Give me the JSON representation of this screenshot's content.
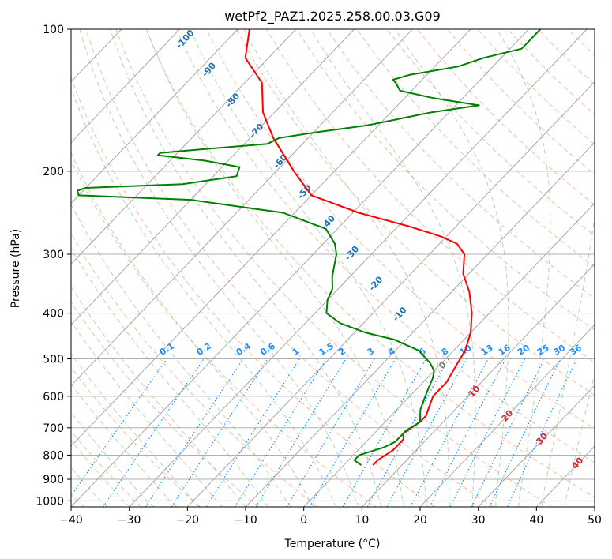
{
  "chart_data": {
    "type": "line",
    "title": "wetPf2_PAZ1.2025.258.00.03.G09",
    "xlabel": "Temperature (°C)",
    "ylabel": "Pressure (hPa)",
    "xlim": [
      -40,
      50
    ],
    "ylim": [
      1030,
      100
    ],
    "y_scale": "log",
    "skew": true,
    "grid": true,
    "x_ticks": [
      "−40",
      "−30",
      "−20",
      "−10",
      "0",
      "10",
      "20",
      "30",
      "40",
      "50"
    ],
    "x_tick_values": [
      -40,
      -30,
      -20,
      -10,
      0,
      10,
      20,
      30,
      40,
      50
    ],
    "y_ticks": [
      "100",
      "200",
      "300",
      "400",
      "500",
      "600",
      "700",
      "800",
      "900",
      "1000"
    ],
    "y_tick_values": [
      100,
      200,
      300,
      400,
      500,
      600,
      700,
      800,
      900,
      1000
    ],
    "series": [
      {
        "role": "temperature",
        "color": "#ff0000",
        "points": [
          [
            5,
            840
          ],
          [
            5,
            820
          ],
          [
            6,
            780
          ],
          [
            6,
            740
          ],
          [
            5,
            720
          ],
          [
            6,
            680
          ],
          [
            6,
            660
          ],
          [
            5,
            630
          ],
          [
            4,
            600
          ],
          [
            4,
            560
          ],
          [
            3,
            520
          ],
          [
            2,
            480
          ],
          [
            0,
            440
          ],
          [
            -3,
            400
          ],
          [
            -7,
            360
          ],
          [
            -11,
            330
          ],
          [
            -14,
            300
          ],
          [
            -17,
            285
          ],
          [
            -21,
            275
          ],
          [
            -28,
            262
          ],
          [
            -39,
            245
          ],
          [
            -50,
            225
          ],
          [
            -57,
            200
          ],
          [
            -66,
            170
          ],
          [
            -72,
            150
          ],
          [
            -77,
            130
          ],
          [
            -84,
            115
          ],
          [
            -88,
            100
          ]
        ]
      },
      {
        "role": "dewpoint",
        "color": "#008000",
        "points": [
          [
            3,
            840
          ],
          [
            1,
            820
          ],
          [
            1,
            800
          ],
          [
            2,
            790
          ],
          [
            4,
            770
          ],
          [
            5,
            750
          ],
          [
            5,
            730
          ],
          [
            5,
            710
          ],
          [
            6,
            680
          ],
          [
            5,
            660
          ],
          [
            4,
            640
          ],
          [
            3,
            610
          ],
          [
            2,
            580
          ],
          [
            1,
            550
          ],
          [
            0,
            530
          ],
          [
            -2,
            510
          ],
          [
            -6,
            480
          ],
          [
            -12,
            455
          ],
          [
            -18,
            440
          ],
          [
            -24,
            420
          ],
          [
            -28,
            400
          ],
          [
            -30,
            375
          ],
          [
            -31,
            355
          ],
          [
            -33,
            335
          ],
          [
            -36,
            300
          ],
          [
            -38,
            285
          ],
          [
            -42,
            265
          ],
          [
            -52,
            245
          ],
          [
            -70,
            230
          ],
          [
            -90,
            225
          ],
          [
            -91,
            220
          ],
          [
            -90,
            217
          ],
          [
            -74,
            213
          ],
          [
            -66,
            205
          ],
          [
            -67,
            196
          ],
          [
            -74,
            190
          ],
          [
            -83,
            185
          ],
          [
            -83,
            183
          ],
          [
            -77,
            180
          ],
          [
            -66,
            175
          ],
          [
            -65,
            170
          ],
          [
            -59,
            165
          ],
          [
            -52,
            160
          ],
          [
            -43,
            150
          ],
          [
            -36,
            145
          ],
          [
            -45,
            140
          ],
          [
            -52,
            135
          ],
          [
            -54,
            130
          ],
          [
            -55,
            128
          ],
          [
            -53,
            125
          ],
          [
            -46,
            120
          ],
          [
            -43,
            115
          ],
          [
            -38,
            110
          ],
          [
            -38,
            100
          ]
        ]
      }
    ],
    "isotherm_spacing": 10,
    "dry_adiabat_labels": [
      "-100",
      "-90",
      "-80",
      "-70",
      "-60",
      "-50",
      "-40",
      "-30",
      "-20",
      "-10"
    ],
    "dry_adiabat_label_color": "#1f6fb4",
    "moist_adiabat_labels": [
      "0",
      "10",
      "20",
      "30",
      "40"
    ],
    "moist_adiabat_label_colors": [
      "#808080",
      "#d62728",
      "#d62728",
      "#d62728",
      "#d62728"
    ],
    "mixing_ratio_labels": [
      "0.1",
      "0.2",
      "0.4",
      "0.6",
      "1",
      "1.5",
      "2",
      "3",
      "4",
      "6",
      "8",
      "10",
      "13",
      "16",
      "20",
      "25",
      "30",
      "36"
    ],
    "mixing_ratio_color": "#1e90ff"
  }
}
